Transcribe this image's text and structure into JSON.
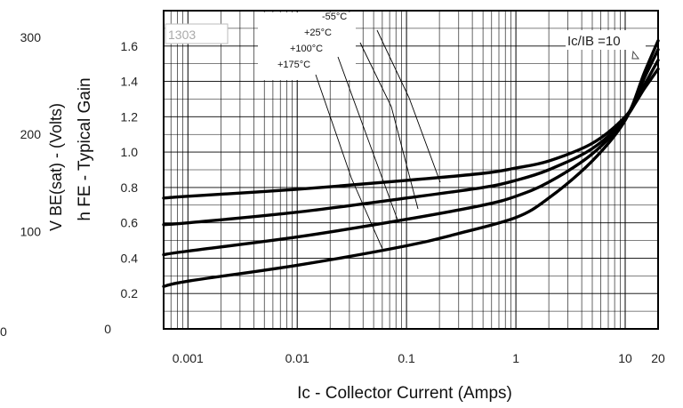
{
  "chart_data": {
    "type": "line",
    "x_scale": "log",
    "xlim": [
      0.0006,
      20
    ],
    "ylim": [
      0,
      1.8
    ],
    "grid": true,
    "x_ticks": [
      {
        "value": 0.001,
        "label": "0.001"
      },
      {
        "value": 0.01,
        "label": "0.01"
      },
      {
        "value": 0.1,
        "label": "0.1"
      },
      {
        "value": 1,
        "label": "1"
      },
      {
        "value": 10,
        "label": "10"
      },
      {
        "value": 20,
        "label": "20"
      }
    ],
    "y_ticks_voltage": [
      {
        "value": 0.2,
        "label": "0.2"
      },
      {
        "value": 0.4,
        "label": "0.4"
      },
      {
        "value": 0.6,
        "label": "0.6"
      },
      {
        "value": 0.8,
        "label": "0.8"
      },
      {
        "value": 1.0,
        "label": "1.0"
      },
      {
        "value": 1.2,
        "label": "1.2"
      },
      {
        "value": 1.4,
        "label": "1.4"
      },
      {
        "value": 1.6,
        "label": "1.6"
      }
    ],
    "y_ticks_gain": [
      {
        "value": 0,
        "label": "0"
      },
      {
        "value": 0.55,
        "label": "100"
      },
      {
        "value": 1.1,
        "label": "200"
      },
      {
        "value": 1.65,
        "label": "300"
      }
    ],
    "y_zero_label": "0",
    "xlabel": "Ic - Collector Current (Amps)",
    "ylabel_gain": "h FE - Typical Gain",
    "ylabel_vbe": "V BE(sat) - (Volts)",
    "stamp": "1303",
    "annotation": "Ic/IB =10",
    "temperature_labels": [
      "-55°C",
      "+25°C",
      "+100°C",
      "+175°C"
    ],
    "series": [
      {
        "label": "-55°C",
        "x": [
          0.0006,
          0.001,
          0.01,
          0.1,
          0.5,
          1,
          2,
          5,
          10,
          15,
          20
        ],
        "y": [
          0.74,
          0.75,
          0.79,
          0.84,
          0.88,
          0.91,
          0.95,
          1.05,
          1.2,
          1.36,
          1.47
        ]
      },
      {
        "label": "+25°C",
        "x": [
          0.0006,
          0.001,
          0.01,
          0.1,
          0.5,
          1,
          2,
          5,
          10,
          15,
          20
        ],
        "y": [
          0.59,
          0.6,
          0.66,
          0.74,
          0.8,
          0.84,
          0.9,
          1.02,
          1.19,
          1.38,
          1.52
        ]
      },
      {
        "label": "+100°C",
        "x": [
          0.0006,
          0.001,
          0.01,
          0.1,
          0.5,
          1,
          2,
          5,
          10,
          15,
          20
        ],
        "y": [
          0.42,
          0.44,
          0.52,
          0.62,
          0.7,
          0.75,
          0.83,
          0.99,
          1.19,
          1.42,
          1.58
        ]
      },
      {
        "label": "+175°C",
        "x": [
          0.0006,
          0.001,
          0.01,
          0.1,
          0.3,
          1,
          2,
          5,
          10,
          15,
          20
        ],
        "y": [
          0.24,
          0.27,
          0.36,
          0.47,
          0.54,
          0.63,
          0.74,
          0.95,
          1.18,
          1.45,
          1.63
        ]
      }
    ]
  }
}
